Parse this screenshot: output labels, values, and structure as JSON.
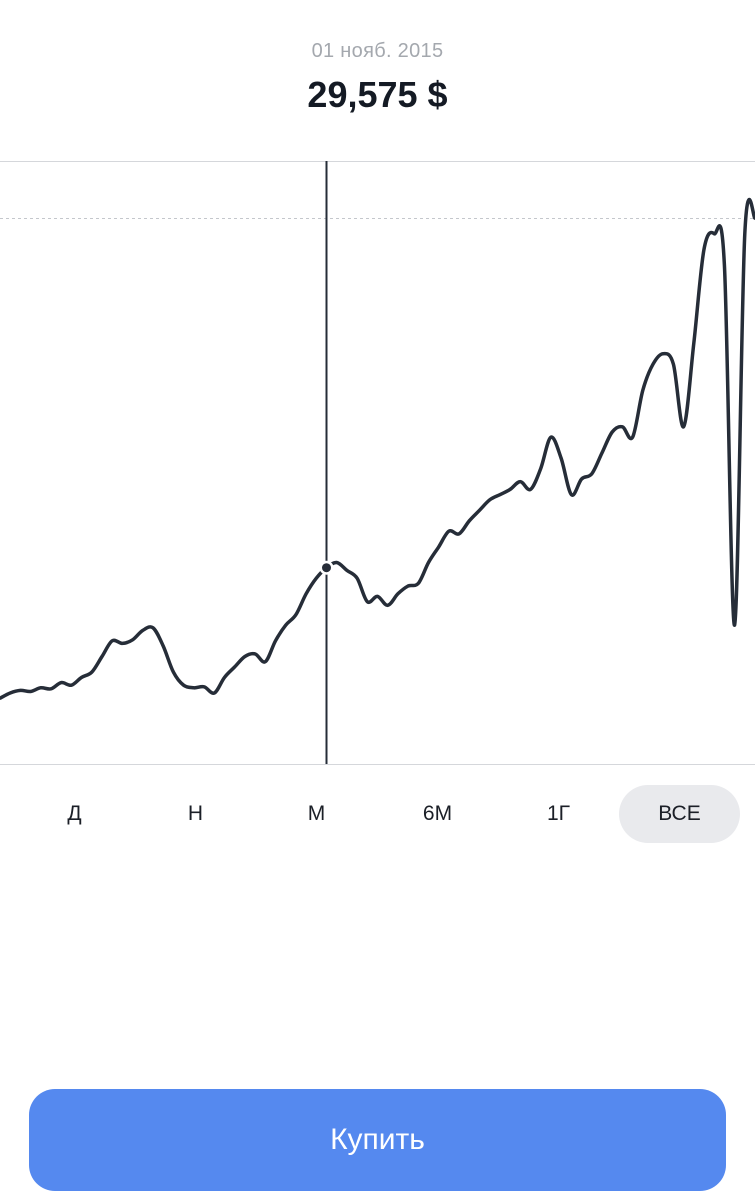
{
  "header": {
    "date": "01 нояб. 2015",
    "price": "29,575 $"
  },
  "periods": [
    {
      "label": "Д",
      "active": false
    },
    {
      "label": "Н",
      "active": false
    },
    {
      "label": "М",
      "active": false
    },
    {
      "label": "6М",
      "active": false
    },
    {
      "label": "1Г",
      "active": false
    },
    {
      "label": "ВСЕ",
      "active": true
    }
  ],
  "buy_button": {
    "label": "Купить",
    "color": "#5589ef"
  },
  "colors": {
    "line": "#262d38",
    "crosshair": "#262d38",
    "grid": "#d5d7db",
    "active_period_bg": "#e9eaed"
  },
  "chart_data": {
    "type": "line",
    "selected_point_index": 32,
    "max_value_reference_line": true,
    "series": [
      {
        "values": [
          8,
          9,
          9.5,
          9.3,
          10,
          9.8,
          11,
          10.5,
          12,
          13,
          16,
          19,
          18.5,
          19.2,
          21,
          21.5,
          18,
          13,
          10.5,
          10,
          10.2,
          9,
          12,
          14,
          16,
          16.5,
          15,
          19,
          22,
          24,
          28,
          31,
          33,
          34,
          32.5,
          31,
          26.5,
          27.5,
          25.8,
          28,
          29.5,
          30,
          34,
          37,
          40,
          39.5,
          42,
          44,
          46,
          47,
          48,
          49.5,
          48,
          52,
          58,
          54,
          47,
          50,
          51,
          55,
          59,
          60,
          58,
          67,
          72,
          74,
          72,
          60,
          76,
          94,
          97,
          91,
          22,
          97,
          100
        ]
      }
    ]
  }
}
